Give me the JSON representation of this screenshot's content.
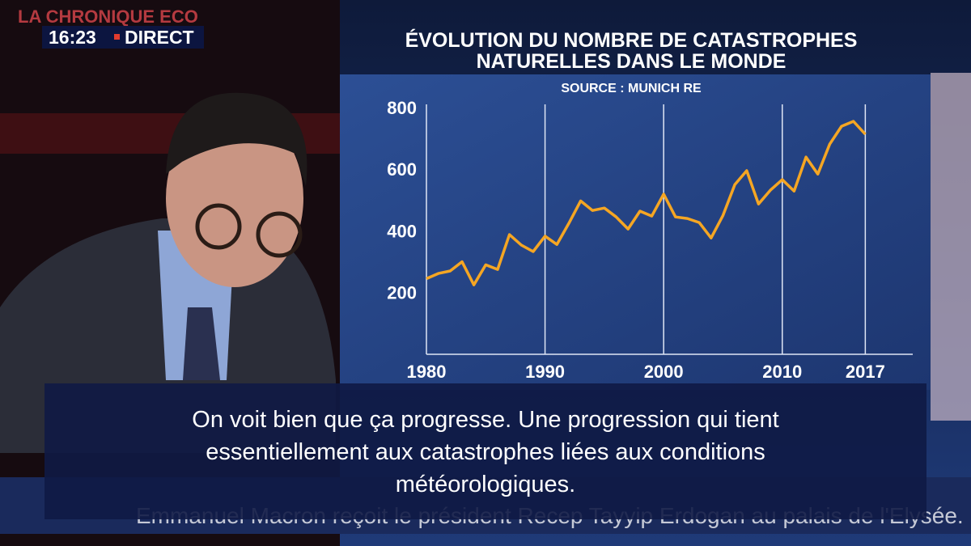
{
  "broadcast": {
    "show": "LA CHRONIQUE ECO",
    "time": "16:23",
    "live": "DIRECT",
    "ticker": "Emmanuel Macron reçoit le président Recep Tayyip Erdogan au palais de l'Elysée."
  },
  "chart_data": {
    "type": "line",
    "title": [
      "ÉVOLUTION DU NOMBRE DE CATASTROPHES",
      "NATURELLES DANS LE MONDE"
    ],
    "subtitle": "SOURCE : MUNICH RE",
    "x": [
      1980,
      1981,
      1982,
      1983,
      1984,
      1985,
      1986,
      1987,
      1988,
      1989,
      1990,
      1991,
      1992,
      1993,
      1994,
      1995,
      1996,
      1997,
      1998,
      1999,
      2000,
      2001,
      2002,
      2003,
      2004,
      2005,
      2006,
      2007,
      2008,
      2009,
      2010,
      2011,
      2012,
      2013,
      2014,
      2015,
      2016,
      2017
    ],
    "values": [
      245,
      262,
      270,
      300,
      225,
      290,
      275,
      388,
      354,
      333,
      383,
      356,
      424,
      497,
      466,
      474,
      445,
      406,
      464,
      448,
      519,
      445,
      440,
      427,
      377,
      450,
      550,
      595,
      487,
      532,
      566,
      529,
      639,
      584,
      681,
      739,
      755,
      713
    ],
    "color": "#f5a623",
    "xlim": [
      1980,
      2021
    ],
    "ylim": [
      0,
      810
    ],
    "xticks": [
      1980,
      1990,
      2000,
      2010,
      2017
    ],
    "yticks": [
      200,
      400,
      600,
      800
    ],
    "grid": true
  },
  "subtitle": {
    "lines": [
      "On voit bien que ça progresse. Une progression qui tient",
      "essentiellement aux catastrophes liées aux conditions",
      "météorologiques."
    ]
  }
}
